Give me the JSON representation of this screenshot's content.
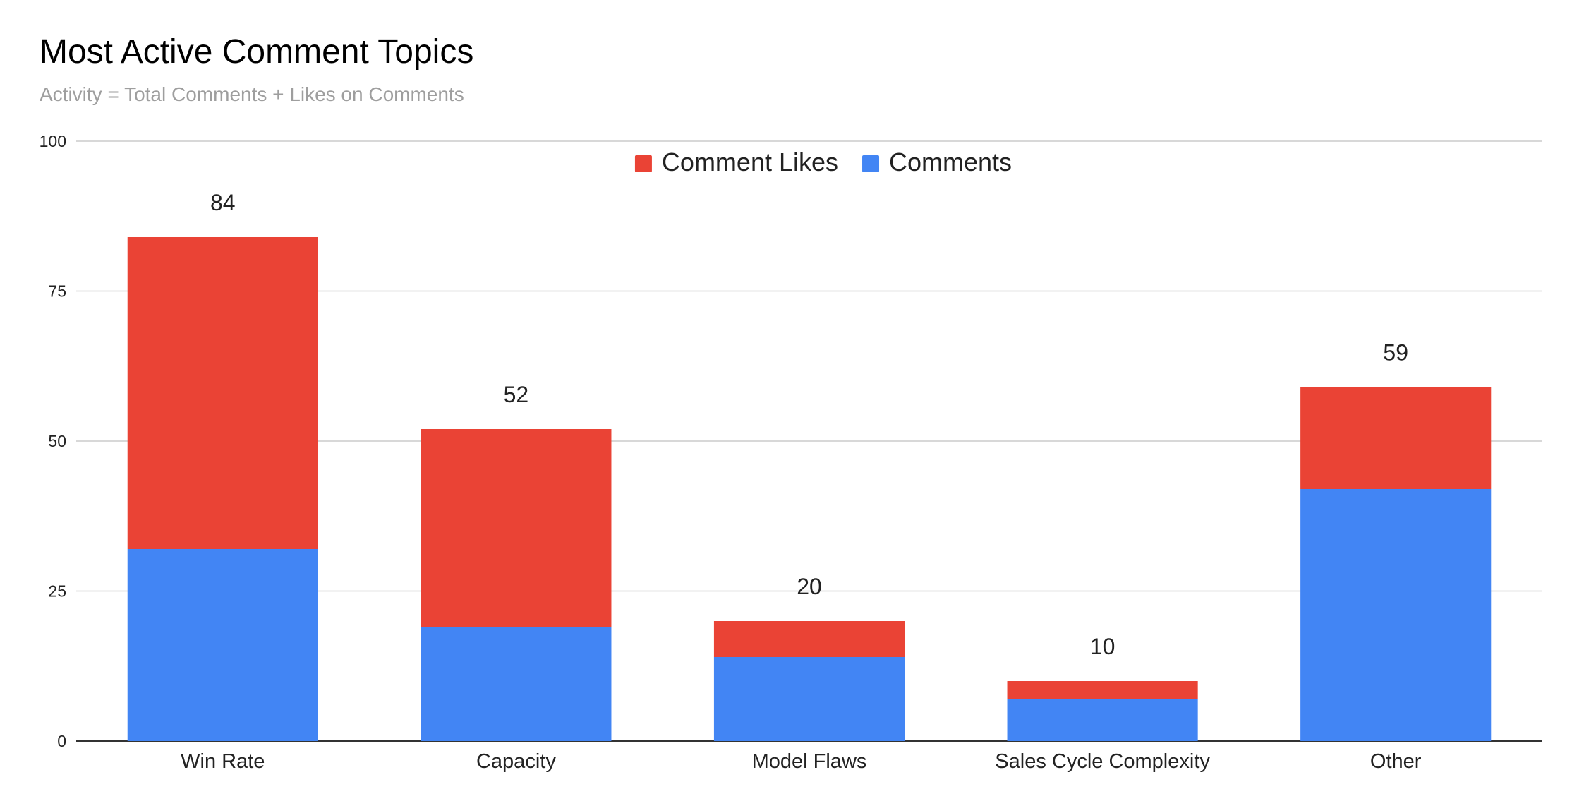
{
  "chart_data": {
    "type": "bar",
    "stacked": true,
    "title": "Most Active Comment Topics",
    "subtitle": "Activity = Total Comments + Likes on Comments",
    "xlabel": "",
    "ylabel": "",
    "categories": [
      "Win Rate",
      "Capacity",
      "Model Flaws",
      "Sales Cycle Complexity",
      "Other"
    ],
    "series": [
      {
        "name": "Comments",
        "values": [
          32,
          19,
          14,
          7,
          42
        ],
        "color": "#4285f4"
      },
      {
        "name": "Comment Likes",
        "values": [
          52,
          33,
          6,
          3,
          17
        ],
        "color": "#ea4335"
      }
    ],
    "totals": [
      84,
      52,
      20,
      10,
      59
    ],
    "ylim": [
      0,
      100
    ],
    "yticks": [
      0,
      25,
      50,
      75,
      100
    ],
    "grid": true,
    "legend_position": "top-center",
    "legend_order": [
      "Comment Likes",
      "Comments"
    ]
  }
}
